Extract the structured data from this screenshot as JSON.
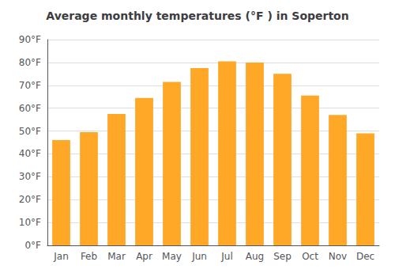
{
  "chart_data": {
    "type": "bar",
    "title": "Average monthly temperatures (°F ) in Soperton",
    "categories": [
      "Jan",
      "Feb",
      "Mar",
      "Apr",
      "May",
      "Jun",
      "Jul",
      "Aug",
      "Sep",
      "Oct",
      "Nov",
      "Dec"
    ],
    "values": [
      46,
      49.5,
      57.5,
      64.5,
      71.5,
      77.5,
      80.5,
      80,
      75,
      65.5,
      57,
      49
    ],
    "color": "#FFA726",
    "ylim": [
      0,
      90
    ],
    "yticks": [
      {
        "value": 0,
        "label": "0°F"
      },
      {
        "value": 10,
        "label": "10°F"
      },
      {
        "value": 20,
        "label": "20°F"
      },
      {
        "value": 30,
        "label": "30°F"
      },
      {
        "value": 40,
        "label": "40°F"
      },
      {
        "value": 50,
        "label": "50°F"
      },
      {
        "value": 60,
        "label": "60°F"
      },
      {
        "value": 70,
        "label": "70°F"
      },
      {
        "value": 80,
        "label": "80°F"
      },
      {
        "value": 90,
        "label": "90°F"
      }
    ],
    "grid": true
  }
}
